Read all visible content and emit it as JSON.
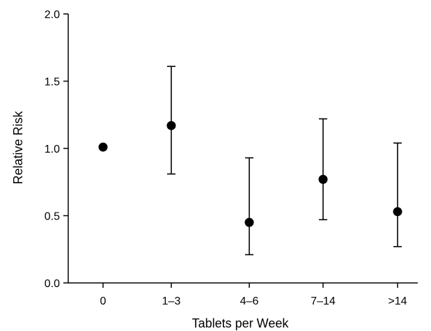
{
  "chart_data": {
    "type": "scatter",
    "title": "",
    "xlabel": "Tablets per Week",
    "ylabel": "Relative Risk",
    "categories": [
      "0",
      "1–3",
      "4–6",
      "7–14",
      ">14"
    ],
    "series": [
      {
        "values": [
          1.01,
          1.17,
          0.45,
          0.77,
          0.53
        ],
        "ci_lower": [
          null,
          0.81,
          0.21,
          0.47,
          0.27
        ],
        "ci_upper": [
          null,
          1.61,
          0.93,
          1.22,
          1.04
        ]
      }
    ],
    "ylim": [
      0.0,
      2.0
    ],
    "yticks": [
      0.0,
      0.5,
      1.0,
      1.5,
      2.0
    ],
    "ytick_labels": [
      "0.0",
      "0.5",
      "1.0",
      "1.5",
      "2.0"
    ],
    "grid": false,
    "legend": "none",
    "colors": {
      "marker": "#000000",
      "axis": "#000000"
    }
  }
}
